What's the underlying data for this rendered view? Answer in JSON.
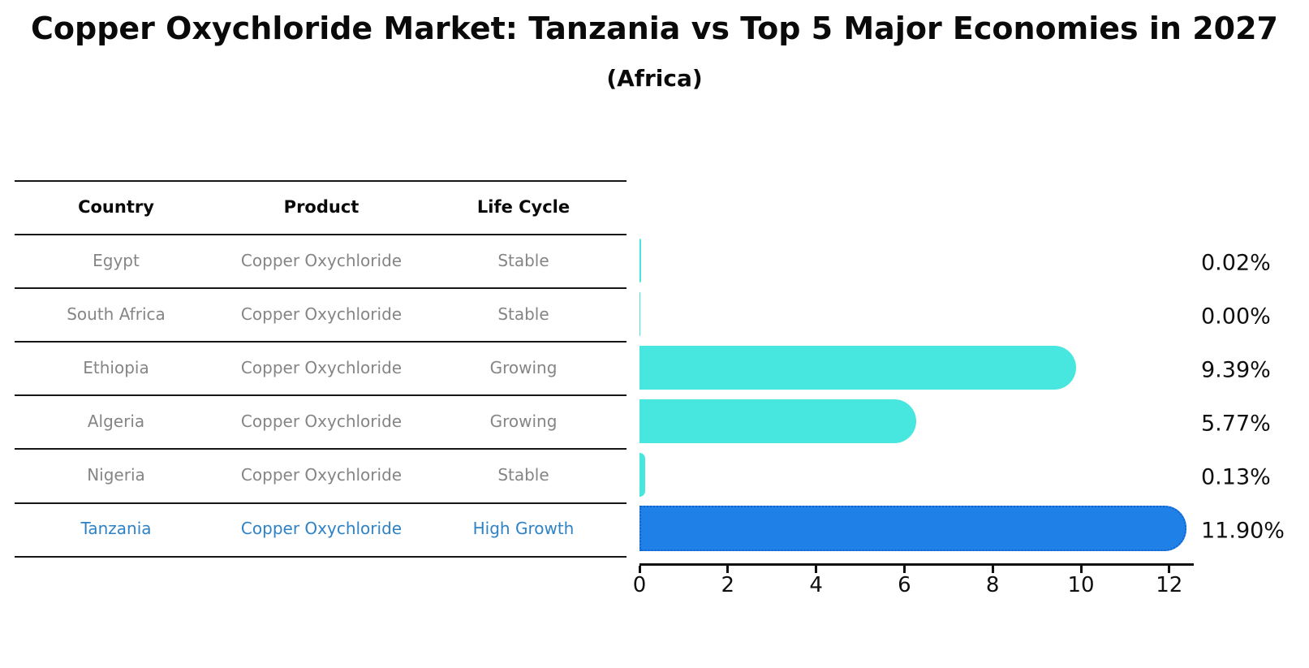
{
  "title": "Copper Oxychloride Market: Tanzania vs Top 5 Major Economies in 2027",
  "subtitle": "(Africa)",
  "table": {
    "headers": [
      "Country",
      "Product",
      "Life Cycle"
    ],
    "rows": [
      {
        "country": "Egypt",
        "product": "Copper Oxychloride",
        "life_cycle": "Stable",
        "highlight": false
      },
      {
        "country": "South Africa",
        "product": "Copper Oxychloride",
        "life_cycle": "Stable",
        "highlight": false
      },
      {
        "country": "Ethiopia",
        "product": "Copper Oxychloride",
        "life_cycle": "Growing",
        "highlight": false
      },
      {
        "country": "Algeria",
        "product": "Copper Oxychloride",
        "life_cycle": "Growing",
        "highlight": false
      },
      {
        "country": "Nigeria",
        "product": "Copper Oxychloride",
        "life_cycle": "Stable",
        "highlight": false
      },
      {
        "country": "Tanzania",
        "product": "Copper Oxychloride",
        "life_cycle": "High Growth",
        "highlight": true
      }
    ]
  },
  "chart_data": {
    "type": "bar",
    "orientation": "horizontal",
    "categories": [
      "Egypt",
      "South Africa",
      "Ethiopia",
      "Algeria",
      "Nigeria",
      "Tanzania"
    ],
    "values": [
      0.02,
      0.0,
      9.39,
      5.77,
      0.13,
      11.9
    ],
    "value_labels": [
      "0.02%",
      "0.00%",
      "9.39%",
      "5.77%",
      "0.13%",
      "11.90%"
    ],
    "highlight_category": "Tanzania",
    "xticks": [
      0,
      2,
      4,
      6,
      8,
      10,
      12
    ],
    "xtick_labels": [
      "0",
      "2",
      "4",
      "6",
      "8",
      "10",
      "12"
    ],
    "xlim": [
      0,
      12.6
    ],
    "grid": false,
    "legend": false,
    "colors": {
      "bar_default": "#47e7df",
      "bar_highlight": "#1f80e8",
      "bar_highlight_border": "#1363cf",
      "highlight_text": "#2e82c6",
      "row_text": "#858585",
      "axis_text": "#0f0f0f"
    }
  }
}
